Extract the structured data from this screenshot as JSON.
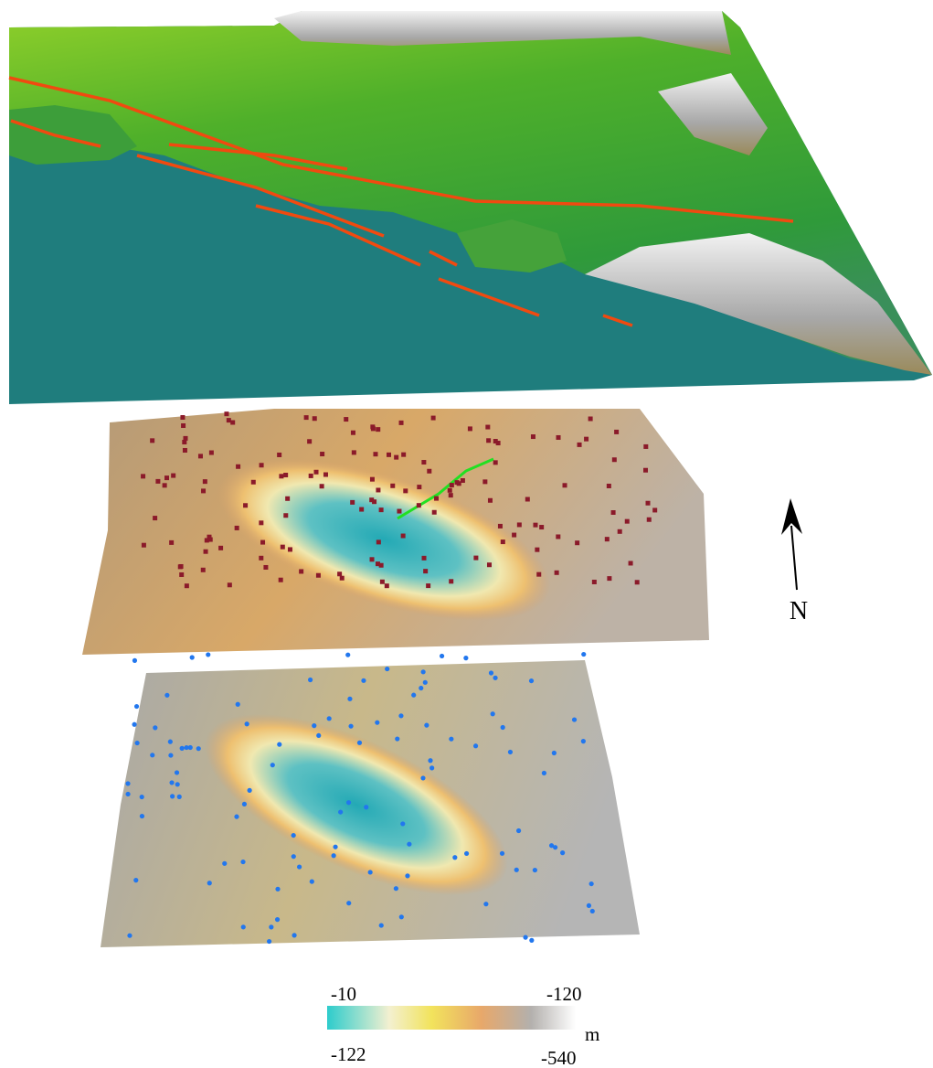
{
  "legend": {
    "top_labels": [
      "-10",
      "-120"
    ],
    "bottom_labels": [
      "-122",
      "-540"
    ],
    "unit": "m"
  },
  "north_arrow": {
    "label": "N"
  }
}
